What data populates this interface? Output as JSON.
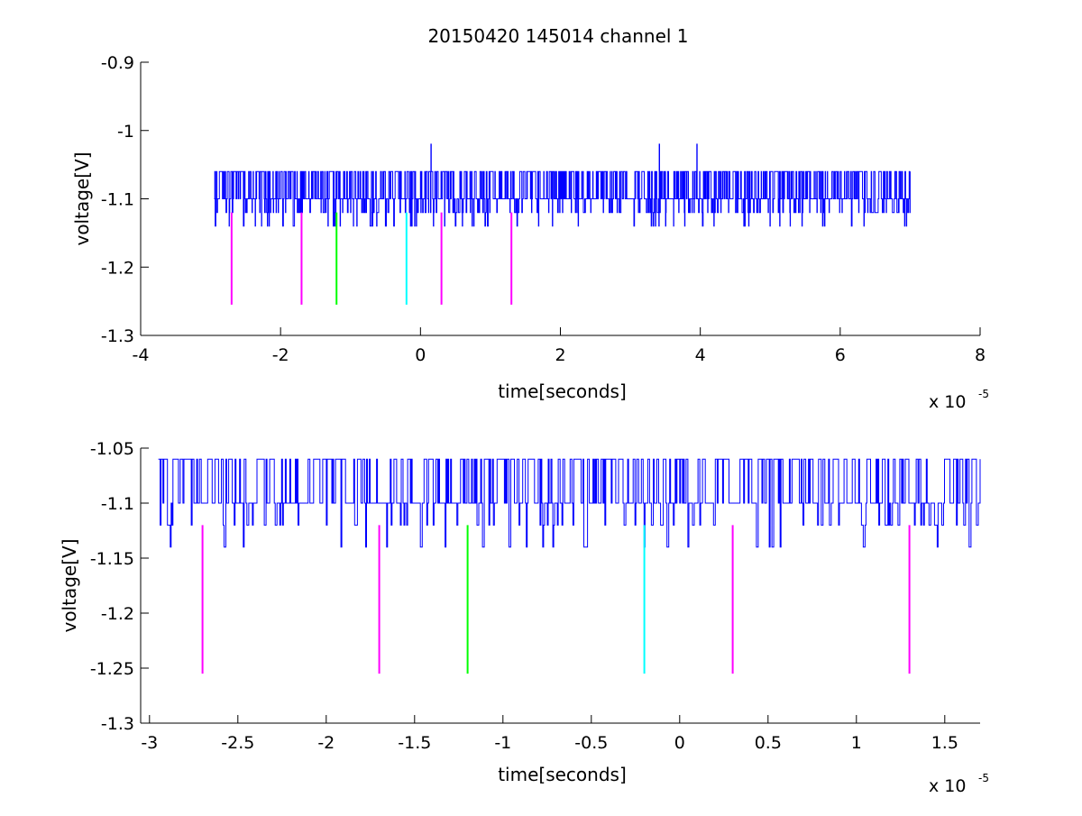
{
  "figure": {
    "title": "20150420 145014 channel 1"
  },
  "chart_data": [
    {
      "type": "line",
      "title": "20150420 145014 channel 1",
      "xlabel": "time[seconds]",
      "ylabel": "voltage[V]",
      "x_multiplier_label": "x 10",
      "x_multiplier_exponent": "-5",
      "xlim": [
        -4,
        8
      ],
      "ylim": [
        -1.3,
        -0.9
      ],
      "xticks": [
        -4,
        -2,
        0,
        2,
        4,
        6,
        8
      ],
      "xtick_labels": [
        "-4",
        "-2",
        "0",
        "2",
        "4",
        "6",
        "8"
      ],
      "yticks": [
        -1.3,
        -1.2,
        -1.1,
        -1.0,
        -0.9
      ],
      "ytick_labels": [
        "-1.3",
        "-1.2",
        "-1.1",
        "-1",
        "-0.9"
      ],
      "grid": false,
      "signal": {
        "color": "#0000ff",
        "x_range": [
          -2.95,
          7.0
        ],
        "baseline": -1.1,
        "high_levels": [
          -1.06,
          -1.02
        ],
        "low_levels": [
          -1.12,
          -1.14
        ],
        "step": 0.02,
        "samples": 2000
      },
      "markers": [
        {
          "x": -2.7,
          "y_top": -1.12,
          "y_bottom": -1.255,
          "color": "#ff00ff"
        },
        {
          "x": -1.7,
          "y_top": -1.12,
          "y_bottom": -1.255,
          "color": "#ff00ff"
        },
        {
          "x": -1.2,
          "y_top": -1.12,
          "y_bottom": -1.255,
          "color": "#00ff00"
        },
        {
          "x": -0.2,
          "y_top": -1.12,
          "y_bottom": -1.255,
          "color": "#00ffff"
        },
        {
          "x": 0.3,
          "y_top": -1.12,
          "y_bottom": -1.255,
          "color": "#ff00ff"
        },
        {
          "x": 1.3,
          "y_top": -1.12,
          "y_bottom": -1.255,
          "color": "#ff00ff"
        }
      ]
    },
    {
      "type": "line",
      "title": "",
      "xlabel": "time[seconds]",
      "ylabel": "voltage[V]",
      "x_multiplier_label": "x 10",
      "x_multiplier_exponent": "-5",
      "xlim": [
        -3.05,
        1.7
      ],
      "ylim": [
        -1.3,
        -1.05
      ],
      "xticks": [
        -3,
        -2.5,
        -2,
        -1.5,
        -1,
        -0.5,
        0,
        0.5,
        1,
        1.5
      ],
      "xtick_labels": [
        "-3",
        "-2.5",
        "-2",
        "-1.5",
        "-1",
        "-0.5",
        "0",
        "0.5",
        "1",
        "1.5"
      ],
      "yticks": [
        -1.3,
        -1.25,
        -1.2,
        -1.15,
        -1.1,
        -1.05
      ],
      "ytick_labels": [
        "-1.3",
        "-1.25",
        "-1.2",
        "-1.15",
        "-1.1",
        "-1.05"
      ],
      "grid": false,
      "signal": {
        "color": "#0000ff",
        "x_range": [
          -2.95,
          1.7
        ],
        "baseline": -1.1,
        "high_levels": [
          -1.06
        ],
        "low_levels": [
          -1.12,
          -1.14
        ],
        "step": 0.02,
        "samples": 900
      },
      "markers": [
        {
          "x": -2.7,
          "y_top": -1.12,
          "y_bottom": -1.255,
          "color": "#ff00ff"
        },
        {
          "x": -1.7,
          "y_top": -1.12,
          "y_bottom": -1.255,
          "color": "#ff00ff"
        },
        {
          "x": -1.2,
          "y_top": -1.12,
          "y_bottom": -1.255,
          "color": "#00ff00"
        },
        {
          "x": -0.2,
          "y_top": -1.12,
          "y_bottom": -1.255,
          "color": "#00ffff"
        },
        {
          "x": 0.3,
          "y_top": -1.12,
          "y_bottom": -1.255,
          "color": "#ff00ff"
        },
        {
          "x": 1.3,
          "y_top": -1.12,
          "y_bottom": -1.255,
          "color": "#ff00ff"
        }
      ]
    }
  ]
}
